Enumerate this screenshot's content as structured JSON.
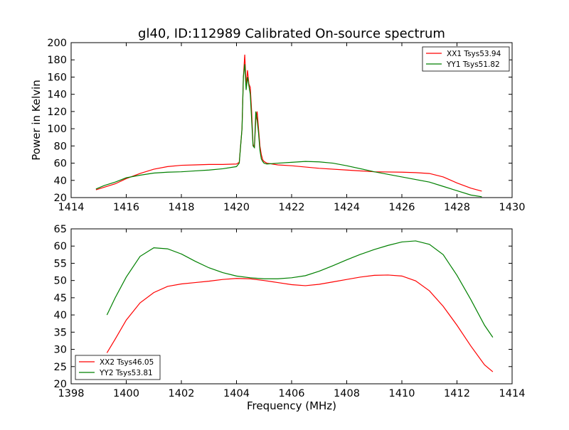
{
  "chart_data": [
    {
      "type": "line",
      "title": "gl40, ID:112989 Calibrated On-source spectrum",
      "xlabel": "",
      "ylabel": "Power in Kelvin",
      "xlim": [
        1414,
        1430
      ],
      "ylim": [
        20,
        200
      ],
      "xticks": [
        1414,
        1416,
        1418,
        1420,
        1422,
        1424,
        1426,
        1428,
        1430
      ],
      "yticks": [
        20,
        40,
        60,
        80,
        100,
        120,
        140,
        160,
        180,
        200
      ],
      "legend_position": "top-right",
      "grid": false,
      "series": [
        {
          "name": "XX1 Tsys53.94",
          "color": "#ff0000",
          "x": [
            1414.9,
            1415.2,
            1415.6,
            1416.0,
            1416.5,
            1417.0,
            1417.5,
            1418.0,
            1418.5,
            1419.0,
            1419.5,
            1420.0,
            1420.1,
            1420.2,
            1420.25,
            1420.3,
            1420.35,
            1420.4,
            1420.45,
            1420.5,
            1420.55,
            1420.6,
            1420.65,
            1420.7,
            1420.75,
            1420.8,
            1420.85,
            1420.9,
            1420.95,
            1421.0,
            1421.1,
            1421.5,
            1422.0,
            1423.0,
            1424.0,
            1425.0,
            1426.0,
            1426.5,
            1427.0,
            1427.5,
            1428.0,
            1428.5,
            1428.9
          ],
          "y": [
            29,
            32,
            36,
            42,
            48,
            53,
            56,
            57.5,
            58,
            58.5,
            58.5,
            59,
            61,
            100,
            160,
            186,
            150,
            168,
            152,
            148,
            120,
            82,
            78,
            110,
            120,
            100,
            80,
            70,
            64,
            62,
            60,
            58,
            57,
            54,
            52,
            50,
            49.5,
            49,
            48,
            44,
            37,
            31,
            27.5
          ]
        },
        {
          "name": "YY1 Tsys51.82",
          "color": "#008000",
          "x": [
            1414.9,
            1415.2,
            1415.6,
            1416.0,
            1416.5,
            1417.0,
            1417.5,
            1418.0,
            1418.5,
            1419.0,
            1419.5,
            1420.0,
            1420.1,
            1420.2,
            1420.25,
            1420.3,
            1420.35,
            1420.4,
            1420.45,
            1420.5,
            1420.55,
            1420.6,
            1420.65,
            1420.7,
            1420.75,
            1420.8,
            1420.85,
            1420.9,
            1420.95,
            1421.0,
            1421.1,
            1421.5,
            1422.0,
            1422.5,
            1423.0,
            1423.5,
            1424.0,
            1425.0,
            1426.0,
            1427.0,
            1427.5,
            1428.0,
            1428.5,
            1428.9
          ],
          "y": [
            30,
            34,
            38,
            43,
            46,
            48.5,
            49.5,
            50,
            51,
            52,
            53.5,
            56,
            60,
            100,
            160,
            175,
            145,
            160,
            150,
            140,
            110,
            80,
            78,
            120,
            110,
            95,
            75,
            65,
            62,
            60,
            59,
            60,
            61,
            62,
            61.5,
            60,
            57,
            50,
            44,
            38,
            33,
            28,
            23,
            21
          ]
        }
      ]
    },
    {
      "type": "line",
      "title": "",
      "xlabel": "Frequency (MHz)",
      "ylabel": "",
      "xlim": [
        1398,
        1414
      ],
      "ylim": [
        20,
        65
      ],
      "xticks": [
        1398,
        1400,
        1402,
        1404,
        1406,
        1408,
        1410,
        1412,
        1414
      ],
      "yticks": [
        20,
        25,
        30,
        35,
        40,
        45,
        50,
        55,
        60,
        65
      ],
      "legend_position": "bottom-left",
      "grid": false,
      "series": [
        {
          "name": "XX2 Tsys46.05",
          "color": "#ff0000",
          "x": [
            1399.3,
            1399.6,
            1400.0,
            1400.5,
            1401.0,
            1401.5,
            1402.0,
            1402.5,
            1403.0,
            1403.5,
            1404.0,
            1404.5,
            1405.0,
            1405.5,
            1406.0,
            1406.5,
            1407.0,
            1407.5,
            1408.0,
            1408.5,
            1409.0,
            1409.5,
            1410.0,
            1410.5,
            1411.0,
            1411.5,
            1412.0,
            1412.5,
            1413.0,
            1413.3
          ],
          "y": [
            29,
            33,
            38.5,
            43.5,
            46.5,
            48.3,
            49,
            49.4,
            49.8,
            50.3,
            50.6,
            50.5,
            50,
            49.4,
            48.8,
            48.5,
            48.9,
            49.6,
            50.3,
            51,
            51.5,
            51.6,
            51.3,
            49.9,
            47,
            42.5,
            37,
            31,
            25.5,
            23.5
          ]
        },
        {
          "name": "YY2 Tsys53.81",
          "color": "#008000",
          "x": [
            1399.3,
            1399.6,
            1400.0,
            1400.5,
            1401.0,
            1401.5,
            1402.0,
            1402.5,
            1403.0,
            1403.5,
            1404.0,
            1404.5,
            1405.0,
            1405.5,
            1406.0,
            1406.5,
            1407.0,
            1407.5,
            1408.0,
            1408.5,
            1409.0,
            1409.5,
            1410.0,
            1410.5,
            1411.0,
            1411.5,
            1412.0,
            1412.5,
            1413.0,
            1413.3
          ],
          "y": [
            40,
            45,
            51,
            57,
            59.5,
            59.2,
            57.7,
            55.6,
            53.7,
            52.3,
            51.3,
            50.8,
            50.5,
            50.5,
            50.8,
            51.4,
            52.7,
            54.3,
            56,
            57.6,
            59,
            60.2,
            61.2,
            61.5,
            60.5,
            57.5,
            51.5,
            44.5,
            37,
            33.5
          ]
        }
      ]
    }
  ]
}
